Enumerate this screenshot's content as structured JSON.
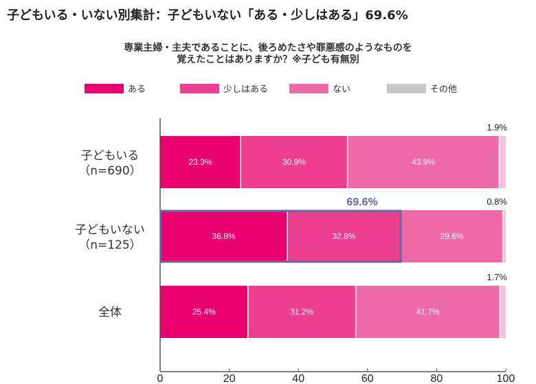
{
  "page_title": "子どもいる・いない別集計：子どもいない「ある・少しはある」69.6%",
  "chart_data": {
    "type": "bar",
    "orientation": "horizontal",
    "stacked": true,
    "title_lines": [
      "専業主婦・主夫であることに、後ろめたさや罪悪感のようなものを",
      "覚えたことはありますか？※子ども有無別"
    ],
    "categories": [
      [
        "子どもいる",
        "（n=690）"
      ],
      [
        "子どもいない",
        "（n=125）"
      ],
      [
        "全体"
      ]
    ],
    "series": [
      {
        "name": "ある",
        "color": "#e8006e",
        "values": [
          23.3,
          36.8,
          25.4
        ],
        "labels": [
          "23.3%",
          "36.8%",
          "25.4%"
        ]
      },
      {
        "name": "少しはある",
        "color": "#ec3f8d",
        "values": [
          30.9,
          32.8,
          31.2
        ],
        "labels": [
          "30.9%",
          "32.8%",
          "31.2%"
        ]
      },
      {
        "name": "ない",
        "color": "#f06aa8",
        "values": [
          43.9,
          29.6,
          41.7
        ],
        "labels": [
          "43.9%",
          "29.6%",
          "41.7%"
        ]
      },
      {
        "name": "その他",
        "color": "#f6c0d8",
        "values": [
          1.9,
          0.8,
          1.7
        ],
        "labels": [
          "1.9%",
          "0.8%",
          "1.7%"
        ]
      }
    ],
    "legend_swatch_colors": [
      "#e8006e",
      "#ec3f8d",
      "#f06aa8",
      "#c8c8c8"
    ],
    "xlim": [
      0,
      100
    ],
    "xticks": [
      0,
      20,
      40,
      60,
      80,
      100
    ],
    "legend_position": "top",
    "highlight": {
      "category_index": 1,
      "value": 69.6,
      "label": "69.6%",
      "color": "#6b63a3"
    }
  }
}
